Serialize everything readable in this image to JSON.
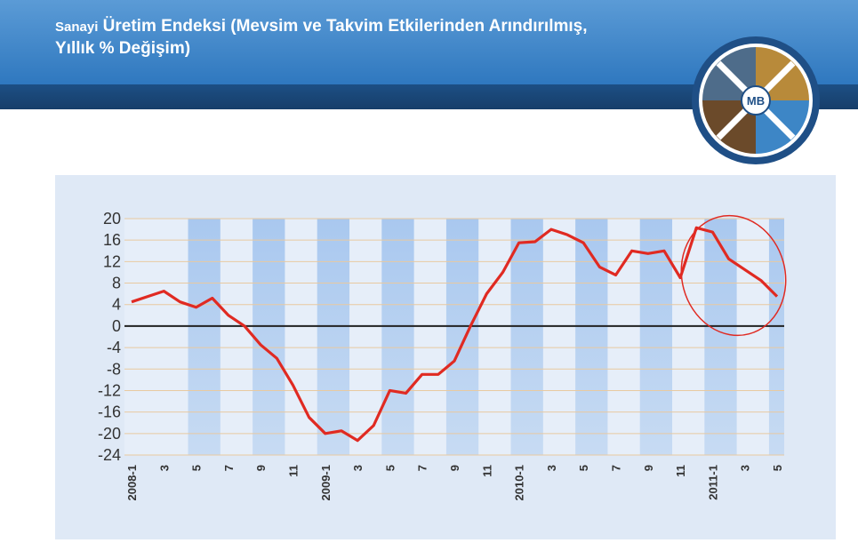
{
  "header": {
    "title": [
      "Sanayi",
      "Üretim Endeksi (Mevsim ve Takvim Etkilerinden Arındırılmış,",
      "Yıllık % Değişim)"
    ],
    "logo_text": "MB"
  },
  "chart_data": {
    "type": "line",
    "categories": [
      "2008-1",
      null,
      "3",
      null,
      "5",
      null,
      "7",
      null,
      "9",
      null,
      "11",
      null,
      "2009-1",
      null,
      "3",
      null,
      "5",
      null,
      "7",
      null,
      "9",
      null,
      "11",
      null,
      "2010-1",
      null,
      "3",
      null,
      "5",
      null,
      "7",
      null,
      "9",
      null,
      "11",
      null,
      "2011-1",
      null,
      "3",
      null,
      "5"
    ],
    "values": [
      4.5,
      5.5,
      6.5,
      4.5,
      3.5,
      5.2,
      2,
      0,
      -3.5,
      -6,
      -11,
      -17,
      -20,
      -19.5,
      -21.3,
      -18.5,
      -12,
      -12.5,
      -9,
      -9,
      -6.5,
      0,
      6,
      10,
      15.5,
      15.7,
      18,
      17,
      15.5,
      11,
      9.5,
      14,
      13.5,
      14,
      9,
      18.3,
      17.5,
      12.5,
      10.5,
      8.5,
      5.5
    ],
    "color": "#e02a22",
    "ylim": [
      -24,
      20
    ],
    "yticks": [
      -24,
      -20,
      -16,
      -12,
      -8,
      -4,
      0,
      4,
      8,
      12,
      16,
      20
    ],
    "grid": true
  }
}
